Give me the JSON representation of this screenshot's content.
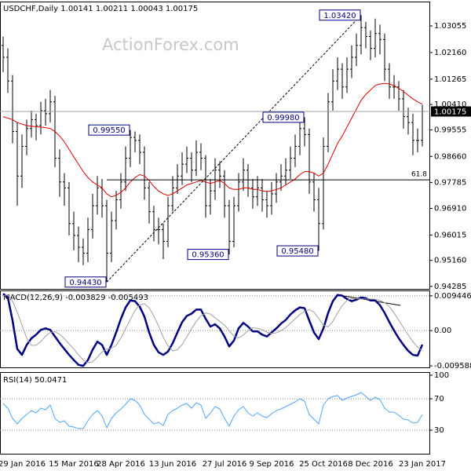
{
  "chart_data": [
    {
      "type": "ohlc",
      "title": "USDCHF,Daily  1.00141 1.00211 1.00043 1.00175",
      "watermark": "ActionForex.com",
      "categories": [
        null,
        null,
        null,
        null,
        "29 Jan 2016",
        null,
        null,
        null,
        null,
        null,
        null,
        null,
        null,
        null,
        null,
        "15 Mar 2016",
        null,
        null,
        null,
        null,
        null,
        null,
        null,
        null,
        null,
        "28 Apr 2016",
        null,
        null,
        null,
        null,
        null,
        null,
        null,
        null,
        null,
        null,
        "13 Jun 2016",
        null,
        null,
        null,
        null,
        null,
        null,
        null,
        null,
        null,
        null,
        "27 Jul 2016",
        null,
        null,
        null,
        null,
        null,
        null,
        null,
        null,
        null,
        "9 Sep 2016",
        null,
        null,
        null,
        null,
        null,
        null,
        null,
        null,
        null,
        null,
        "25 Oct 2016",
        null,
        null,
        null,
        null,
        null,
        null,
        null,
        null,
        null,
        "8 Dec 2016",
        null,
        null,
        null,
        null,
        null,
        null,
        null,
        null,
        null,
        null,
        "23 Jan 2017"
      ],
      "open": [
        1.024,
        1.02,
        1.012,
        0.995,
        0.98,
        0.99,
        0.996,
        0.999,
        0.997,
        1.002,
        1.001,
        1.005,
        0.986,
        0.978,
        0.976,
        0.964,
        0.96,
        0.956,
        0.954,
        0.962,
        0.97,
        0.976,
        0.97,
        0.954,
        0.965,
        0.972,
        0.978,
        0.986,
        0.993,
        0.992,
        0.988,
        0.976,
        0.968,
        0.962,
        0.962,
        0.958,
        0.97,
        0.976,
        0.98,
        0.984,
        0.986,
        0.982,
        0.988,
        0.986,
        0.97,
        0.975,
        0.982,
        0.98,
        0.97,
        0.958,
        0.97,
        0.978,
        0.982,
        0.976,
        0.973,
        0.976,
        0.972,
        0.97,
        0.974,
        0.978,
        0.98,
        0.982,
        0.986,
        0.99,
        0.996,
        0.994,
        0.978,
        0.972,
        0.964,
        0.99,
        1.005,
        1.012,
        1.016,
        1.01,
        1.016,
        1.02,
        1.024,
        1.03,
        1.027,
        1.023,
        1.028,
        1.026,
        1.016,
        1.01,
        1.01,
        1.006,
        1.0,
        0.998,
        0.992,
        0.992
      ],
      "high": [
        1.027,
        1.023,
        1.014,
        0.998,
        0.994,
        0.999,
        1.002,
        1.001,
        1.005,
        1.006,
        1.009,
        1.007,
        0.989,
        0.981,
        0.978,
        0.968,
        0.963,
        0.959,
        0.966,
        0.974,
        0.98,
        0.979,
        0.972,
        0.968,
        0.975,
        0.981,
        0.99,
        0.9955,
        0.995,
        0.994,
        0.99,
        0.978,
        0.97,
        0.966,
        0.964,
        0.973,
        0.98,
        0.984,
        0.988,
        0.99,
        0.988,
        0.992,
        0.991,
        0.987,
        0.979,
        0.986,
        0.985,
        0.982,
        0.972,
        0.973,
        0.981,
        0.986,
        0.984,
        0.979,
        0.98,
        0.979,
        0.975,
        0.978,
        0.981,
        0.984,
        0.986,
        0.99,
        0.994,
        0.999,
        0.9998,
        0.996,
        0.981,
        0.976,
        0.993,
        1.008,
        1.016,
        1.02,
        1.018,
        1.02,
        1.024,
        1.028,
        1.0342,
        1.032,
        1.029,
        1.033,
        1.031,
        1.028,
        1.018,
        1.014,
        1.012,
        1.009,
        1.003,
        1.001,
        0.996,
        1.004
      ],
      "low": [
        1.015,
        1.008,
        0.991,
        0.97,
        0.976,
        0.987,
        0.993,
        0.992,
        0.994,
        0.997,
        0.998,
        0.983,
        0.973,
        0.97,
        0.96,
        0.955,
        0.951,
        0.95,
        0.951,
        0.959,
        0.967,
        0.966,
        0.9443,
        0.951,
        0.962,
        0.969,
        0.975,
        0.983,
        0.988,
        0.984,
        0.972,
        0.964,
        0.958,
        0.957,
        0.952,
        0.956,
        0.968,
        0.974,
        0.977,
        0.981,
        0.978,
        0.98,
        0.982,
        0.966,
        0.967,
        0.972,
        0.976,
        0.966,
        0.9536,
        0.956,
        0.968,
        0.975,
        0.973,
        0.969,
        0.97,
        0.968,
        0.966,
        0.967,
        0.971,
        0.975,
        0.977,
        0.979,
        0.983,
        0.987,
        0.99,
        0.974,
        0.968,
        0.9548,
        0.962,
        0.988,
        1.002,
        1.009,
        1.006,
        1.008,
        1.013,
        1.017,
        1.021,
        1.023,
        1.019,
        1.02,
        1.021,
        1.012,
        1.006,
        1.006,
        1.002,
        0.996,
        0.994,
        0.987,
        0.988,
        0.99
      ],
      "close": [
        1.02,
        1.012,
        0.995,
        0.98,
        0.99,
        0.996,
        0.999,
        0.997,
        1.002,
        1.001,
        1.005,
        0.986,
        0.978,
        0.976,
        0.964,
        0.96,
        0.956,
        0.954,
        0.962,
        0.97,
        0.976,
        0.97,
        0.954,
        0.965,
        0.972,
        0.978,
        0.986,
        0.993,
        0.992,
        0.988,
        0.976,
        0.968,
        0.962,
        0.962,
        0.958,
        0.97,
        0.976,
        0.98,
        0.984,
        0.986,
        0.982,
        0.988,
        0.986,
        0.97,
        0.975,
        0.982,
        0.98,
        0.97,
        0.958,
        0.97,
        0.978,
        0.982,
        0.976,
        0.973,
        0.976,
        0.972,
        0.97,
        0.974,
        0.978,
        0.98,
        0.982,
        0.986,
        0.99,
        0.996,
        0.994,
        0.978,
        0.972,
        0.964,
        0.99,
        1.005,
        1.012,
        1.016,
        1.01,
        1.016,
        1.02,
        1.024,
        1.03,
        1.027,
        1.023,
        1.028,
        1.026,
        1.016,
        1.01,
        1.01,
        1.006,
        1.0,
        0.998,
        0.992,
        0.992,
        1.0018
      ],
      "color": "#000000",
      "ma": {
        "color": "#e00000",
        "values": [
          1.0,
          0.9995,
          0.999,
          0.998,
          0.9975,
          0.997,
          0.9968,
          0.9966,
          0.9965,
          0.9963,
          0.996,
          0.995,
          0.9935,
          0.9915,
          0.989,
          0.9865,
          0.984,
          0.9815,
          0.9795,
          0.978,
          0.977,
          0.976,
          0.974,
          0.973,
          0.9735,
          0.9745,
          0.976,
          0.978,
          0.9795,
          0.9805,
          0.98,
          0.9785,
          0.9765,
          0.975,
          0.974,
          0.9735,
          0.974,
          0.975,
          0.976,
          0.977,
          0.9775,
          0.978,
          0.9785,
          0.978,
          0.9775,
          0.978,
          0.9785,
          0.9775,
          0.976,
          0.9755,
          0.9755,
          0.976,
          0.976,
          0.9755,
          0.9755,
          0.975,
          0.9748,
          0.975,
          0.9755,
          0.976,
          0.977,
          0.978,
          0.979,
          0.9805,
          0.9815,
          0.9815,
          0.981,
          0.98,
          0.981,
          0.984,
          0.9875,
          0.991,
          0.9935,
          0.9965,
          0.9995,
          1.0025,
          1.0055,
          1.0075,
          1.009,
          1.0105,
          1.011,
          1.0112,
          1.011,
          1.0105,
          1.0095,
          1.0085,
          1.0072,
          1.006,
          1.005,
          1.0042
        ]
      },
      "ylim": [
        0.942,
        1.0385
      ],
      "yticks": [
        1.03055,
        {
          "value": 1.0216,
          "label": "1.02160"
        },
        1.01265,
        {
          "value": 1.0041,
          "label": "1.00410"
        },
        0.99555,
        {
          "value": 0.9866,
          "label": "0.98660"
        },
        0.97785,
        {
          "value": 0.9691,
          "label": "0.96910"
        },
        0.96015,
        {
          "value": 0.9516,
          "label": "0.95160"
        },
        0.94285
      ],
      "last_price": 1.00175,
      "levels": [
        {
          "label": "61.8",
          "value": 0.9787
        }
      ],
      "annotations": [
        {
          "text": "0.94430",
          "value": 0.9443
        },
        {
          "text": "0.99550",
          "value": 0.9955
        },
        {
          "text": "0.95360",
          "value": 0.9536
        },
        {
          "text": "0.99980",
          "value": 0.9998
        },
        {
          "text": "0.95480",
          "value": 0.9548
        },
        {
          "text": "1.03420",
          "value": 1.0342
        }
      ]
    },
    {
      "type": "line",
      "title": "MACD(12,26,9) -0.003829 -0.005493",
      "series": [
        {
          "color": "#000080",
          "values": [
            0.01,
            0.009,
            0.0027,
            -0.005,
            -0.0066,
            -0.0039,
            -0.0021,
            -0.0011,
            0.0002,
            0.0006,
            0.0002,
            -0.0016,
            -0.0034,
            -0.005,
            -0.0066,
            -0.008,
            -0.0093,
            -0.0096,
            -0.008,
            -0.0052,
            -0.003,
            -0.0039,
            -0.0066,
            -0.0039,
            -0.0005,
            0.0032,
            0.0063,
            0.0082,
            0.008,
            0.0065,
            0.0038,
            -0.0005,
            -0.0039,
            -0.0059,
            -0.0066,
            -0.0057,
            -0.0034,
            -0.0005,
            0.0023,
            0.004,
            0.0046,
            0.0057,
            0.0057,
            0.0032,
            0.0011,
            0.0017,
            0.0006,
            -0.0016,
            -0.0043,
            -0.0027,
            0.0006,
            0.0021,
            0.0011,
            -0.0002,
            -0.0002,
            -0.0011,
            -0.0016,
            -0.0005,
            0.0006,
            0.0019,
            0.0029,
            0.0044,
            0.0055,
            0.0063,
            0.0061,
            0.0027,
            -0.0005,
            -0.0023,
            0.0006,
            0.0048,
            0.008,
            0.0097,
            0.0095,
            0.0086,
            0.008,
            0.0084,
            0.009,
            0.0088,
            0.0082,
            0.0082,
            0.0069,
            0.0048,
            0.0023,
            0.0,
            -0.0021,
            -0.0039,
            -0.0055,
            -0.0066,
            -0.0068,
            -0.0038
          ]
        },
        {
          "color": "#a0a0a0",
          "values": [
            0.0095,
            0.0097,
            0.008,
            0.005,
            0.0015,
            -0.002,
            -0.004,
            -0.004,
            -0.003,
            -0.0015,
            -0.0005,
            -0.0003,
            -0.001,
            -0.0022,
            -0.0036,
            -0.005,
            -0.0066,
            -0.008,
            -0.0087,
            -0.0085,
            -0.0072,
            -0.0058,
            -0.005,
            -0.0048,
            -0.004,
            -0.002,
            0.0005,
            0.003,
            0.0055,
            0.007,
            0.0073,
            0.0062,
            0.004,
            0.0012,
            -0.0018,
            -0.0042,
            -0.0055,
            -0.0052,
            -0.0038,
            -0.0017,
            0.0005,
            0.0025,
            0.004,
            0.0048,
            0.0045,
            0.0035,
            0.0025,
            0.0015,
            0.0,
            -0.0015,
            -0.002,
            -0.0012,
            0.0,
            0.0008,
            0.0006,
            0.0002,
            -0.0004,
            -0.0008,
            -0.0006,
            0.0,
            0.0008,
            0.002,
            0.0032,
            0.0044,
            0.0053,
            0.0057,
            0.005,
            0.0033,
            0.0015,
            0.001,
            0.0025,
            0.0048,
            0.0068,
            0.0082,
            0.0087,
            0.0087,
            0.0086,
            0.0086,
            0.0086,
            0.0085,
            0.0082,
            0.0076,
            0.0065,
            0.0048,
            0.0028,
            0.0008,
            -0.0012,
            -0.003,
            -0.0045,
            -0.0055
          ]
        }
      ],
      "ylim": [
        -0.01,
        0.0107
      ],
      "yticks": [
        0.009446,
        {
          "value": 0,
          "label": "0.00"
        },
        -0.009588
      ],
      "grid": true
    },
    {
      "type": "line",
      "title": "RSI(14) 50.0471",
      "series": [
        {
          "color": "#4da6ff",
          "values": [
            64,
            58,
            45,
            38,
            45,
            50,
            55,
            52,
            58,
            56,
            62,
            45,
            40,
            42,
            35,
            34,
            32,
            32,
            42,
            50,
            55,
            48,
            33,
            45,
            52,
            57,
            63,
            70,
            68,
            62,
            50,
            44,
            38,
            40,
            36,
            50,
            55,
            58,
            62,
            64,
            58,
            65,
            62,
            45,
            52,
            60,
            57,
            45,
            35,
            48,
            56,
            60,
            52,
            48,
            52,
            48,
            46,
            51,
            55,
            57,
            60,
            63,
            66,
            70,
            67,
            50,
            44,
            38,
            62,
            70,
            73,
            74,
            68,
            71,
            73,
            75,
            78,
            73,
            68,
            72,
            69,
            58,
            53,
            53,
            49,
            44,
            43,
            39,
            40,
            50.05
          ]
        }
      ],
      "ylim": [
        0,
        103
      ],
      "yticks": [
        100,
        70,
        30
      ],
      "grid": true
    }
  ]
}
